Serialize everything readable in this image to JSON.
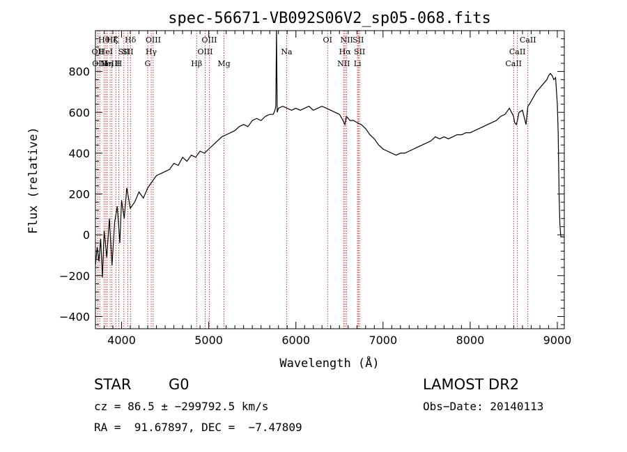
{
  "chart_data": {
    "type": "line",
    "title": "spec-56671-VB092S06V2_sp05-068.fits",
    "xlabel": "Wavelength (Å)",
    "ylabel": "Flux (relative)",
    "xlim": [
      3700,
      9080
    ],
    "ylim": [
      -460,
      1000
    ],
    "x_ticks": [
      4000,
      5000,
      6000,
      7000,
      8000,
      9000
    ],
    "x_tick_labels": [
      "4000",
      "5000",
      "6000",
      "7000",
      "8000",
      "9000"
    ],
    "y_ticks": [
      -400,
      -200,
      0,
      200,
      400,
      600,
      800
    ],
    "y_tick_labels": [
      "−400",
      "−200",
      "0",
      "200",
      "400",
      "600",
      "800"
    ],
    "grid": false,
    "line_color": "#000000",
    "marker_line_color": "#cc0000",
    "spectrum": {
      "x": [
        3700,
        3720,
        3740,
        3760,
        3780,
        3800,
        3830,
        3860,
        3890,
        3920,
        3950,
        3980,
        4000,
        4030,
        4060,
        4100,
        4150,
        4200,
        4250,
        4300,
        4350,
        4400,
        4450,
        4500,
        4550,
        4600,
        4650,
        4700,
        4750,
        4800,
        4850,
        4900,
        4950,
        5000,
        5050,
        5100,
        5150,
        5200,
        5250,
        5300,
        5350,
        5400,
        5450,
        5500,
        5550,
        5600,
        5650,
        5700,
        5740,
        5760,
        5770,
        5778,
        5786,
        5800,
        5850,
        5900,
        5950,
        6000,
        6050,
        6100,
        6150,
        6200,
        6250,
        6300,
        6350,
        6400,
        6450,
        6500,
        6540,
        6563,
        6580,
        6620,
        6660,
        6700,
        6750,
        6800,
        6850,
        6900,
        6950,
        7000,
        7050,
        7100,
        7150,
        7200,
        7250,
        7300,
        7350,
        7400,
        7450,
        7500,
        7550,
        7600,
        7650,
        7700,
        7750,
        7800,
        7850,
        7900,
        7950,
        8000,
        8050,
        8100,
        8150,
        8200,
        8250,
        8300,
        8350,
        8400,
        8450,
        8498,
        8510,
        8530,
        8542,
        8560,
        8600,
        8640,
        8662,
        8680,
        8720,
        8760,
        8800,
        8840,
        8880,
        8900,
        8920,
        8940,
        8960,
        8980,
        9000,
        9010,
        9020,
        9030,
        9040,
        9060,
        9070,
        9080
      ],
      "y": [
        -150,
        -60,
        -130,
        -20,
        -210,
        20,
        -110,
        80,
        -150,
        60,
        140,
        -40,
        170,
        80,
        230,
        130,
        160,
        210,
        180,
        230,
        260,
        290,
        300,
        310,
        320,
        350,
        340,
        380,
        360,
        390,
        380,
        410,
        400,
        420,
        440,
        460,
        480,
        490,
        500,
        510,
        530,
        540,
        530,
        560,
        570,
        560,
        580,
        590,
        590,
        610,
        630,
        1000,
        600,
        620,
        630,
        620,
        610,
        620,
        610,
        620,
        630,
        610,
        620,
        630,
        620,
        610,
        600,
        590,
        560,
        540,
        580,
        560,
        560,
        550,
        540,
        520,
        490,
        470,
        440,
        420,
        410,
        400,
        390,
        400,
        400,
        410,
        420,
        430,
        440,
        450,
        460,
        480,
        470,
        480,
        470,
        480,
        490,
        490,
        500,
        500,
        510,
        520,
        530,
        540,
        550,
        560,
        580,
        590,
        620,
        580,
        550,
        540,
        560,
        600,
        610,
        540,
        630,
        640,
        670,
        700,
        720,
        740,
        760,
        780,
        790,
        780,
        760,
        770,
        640,
        500,
        200,
        50,
        -10,
        -10,
        -10,
        -10
      ]
    },
    "lines": [
      {
        "x": 3727,
        "label": "OII",
        "row": 1
      },
      {
        "x": 3750,
        "label": "OIII",
        "row": 2
      },
      {
        "x": 3798,
        "label": "Hθ",
        "row": 0
      },
      {
        "x": 3819,
        "label": "HeI",
        "row": 1
      },
      {
        "x": 3835,
        "label": "Hη",
        "row": 2
      },
      {
        "x": 3869,
        "label": "NeIII",
        "row": 2
      },
      {
        "x": 3889,
        "label": "Hζ",
        "row": 0
      },
      {
        "x": 3934,
        "label": "K",
        "row": 0
      },
      {
        "x": 3968,
        "label": "H",
        "row": 2
      },
      {
        "x": 4026,
        "label": "SII",
        "row": 1
      },
      {
        "x": 4072,
        "label": "SII",
        "row": 1
      },
      {
        "x": 4102,
        "label": "Hδ",
        "row": 0
      },
      {
        "x": 4300,
        "label": "G",
        "row": 2
      },
      {
        "x": 4340,
        "label": "Hγ",
        "row": 1
      },
      {
        "x": 4363,
        "label": "OIII",
        "row": 0
      },
      {
        "x": 4861,
        "label": "Hβ",
        "row": 2
      },
      {
        "x": 4959,
        "label": "OIII",
        "row": 1
      },
      {
        "x": 5007,
        "label": "OIII",
        "row": 0
      },
      {
        "x": 5175,
        "label": "Mg",
        "row": 2
      },
      {
        "x": 5894,
        "label": "Na",
        "row": 1
      },
      {
        "x": 6364,
        "label": "OI",
        "row": 0
      },
      {
        "x": 6548,
        "label": "NII",
        "row": 2
      },
      {
        "x": 6563,
        "label": "Hα",
        "row": 1
      },
      {
        "x": 6583,
        "label": "NII",
        "row": 0
      },
      {
        "x": 6707,
        "label": "Li",
        "row": 2
      },
      {
        "x": 6716,
        "label": "SII",
        "row": 0
      },
      {
        "x": 6731,
        "label": "SII",
        "row": 1
      },
      {
        "x": 8498,
        "label": "CaII",
        "row": 2
      },
      {
        "x": 8542,
        "label": "CaII",
        "row": 1
      },
      {
        "x": 8662,
        "label": "CaII",
        "row": 0
      }
    ]
  },
  "info": {
    "object_class": "STAR",
    "subclass": "G0",
    "survey": "LAMOST DR2",
    "redshift": "cz = 86.5 ± −299792.5 km/s",
    "obs_date": "Obs−Date: 20140113",
    "coords": "RA =  91.67897, DEC =  −7.47809"
  }
}
